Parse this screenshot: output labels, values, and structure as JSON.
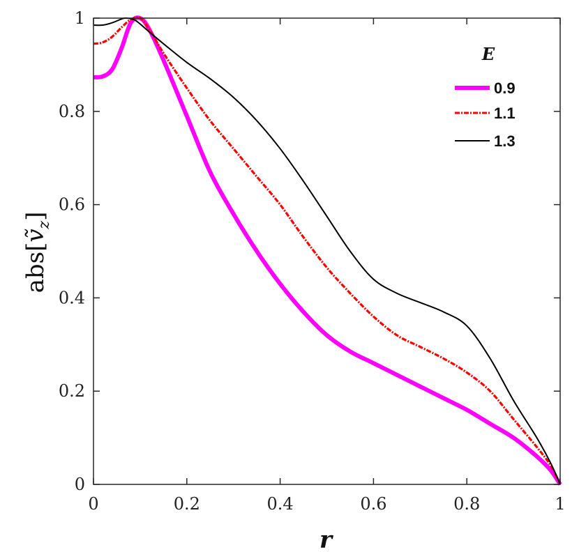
{
  "chart_data": {
    "type": "line",
    "xlabel": "r",
    "ylabel": "abs[ṽ_z]",
    "ylabel_main": "abs[",
    "ylabel_var": "ṽ",
    "ylabel_sub": "z",
    "ylabel_close": "]",
    "xlim": [
      0,
      1
    ],
    "ylim": [
      0,
      1
    ],
    "x_ticks": [
      0,
      0.2,
      0.4,
      0.6,
      0.8,
      1
    ],
    "y_ticks": [
      0,
      0.2,
      0.4,
      0.6,
      0.8,
      1
    ],
    "x_tick_labels": [
      "0",
      "0.2",
      "0.4",
      "0.6",
      "0.8",
      "1"
    ],
    "y_tick_labels": [
      "0",
      "0.2",
      "0.4",
      "0.6",
      "0.8",
      "1"
    ],
    "grid": false,
    "legend": {
      "title": "E",
      "placement": "top-right"
    },
    "series": [
      {
        "name": "0.9",
        "color": "#ff00ff",
        "style": "solid-thick",
        "points": [
          [
            0,
            0.873
          ],
          [
            0.02,
            0.875
          ],
          [
            0.04,
            0.89
          ],
          [
            0.06,
            0.935
          ],
          [
            0.08,
            0.99
          ],
          [
            0.1,
            1.0
          ],
          [
            0.12,
            0.975
          ],
          [
            0.15,
            0.91
          ],
          [
            0.2,
            0.79
          ],
          [
            0.25,
            0.67
          ],
          [
            0.3,
            0.58
          ],
          [
            0.35,
            0.5
          ],
          [
            0.4,
            0.43
          ],
          [
            0.45,
            0.37
          ],
          [
            0.5,
            0.32
          ],
          [
            0.55,
            0.285
          ],
          [
            0.6,
            0.26
          ],
          [
            0.65,
            0.235
          ],
          [
            0.7,
            0.21
          ],
          [
            0.75,
            0.185
          ],
          [
            0.8,
            0.16
          ],
          [
            0.85,
            0.13
          ],
          [
            0.9,
            0.1
          ],
          [
            0.95,
            0.06
          ],
          [
            0.98,
            0.03
          ],
          [
            1.0,
            0.0
          ]
        ]
      },
      {
        "name": "1.1",
        "color": "#ff0000",
        "style": "dash-dot",
        "points": [
          [
            0,
            0.945
          ],
          [
            0.02,
            0.948
          ],
          [
            0.04,
            0.96
          ],
          [
            0.06,
            0.98
          ],
          [
            0.08,
            0.997
          ],
          [
            0.1,
            1.0
          ],
          [
            0.12,
            0.975
          ],
          [
            0.15,
            0.925
          ],
          [
            0.2,
            0.85
          ],
          [
            0.25,
            0.78
          ],
          [
            0.3,
            0.72
          ],
          [
            0.35,
            0.66
          ],
          [
            0.4,
            0.6
          ],
          [
            0.45,
            0.53
          ],
          [
            0.5,
            0.465
          ],
          [
            0.55,
            0.41
          ],
          [
            0.6,
            0.36
          ],
          [
            0.65,
            0.32
          ],
          [
            0.7,
            0.295
          ],
          [
            0.75,
            0.27
          ],
          [
            0.8,
            0.24
          ],
          [
            0.85,
            0.2
          ],
          [
            0.9,
            0.14
          ],
          [
            0.95,
            0.08
          ],
          [
            0.98,
            0.04
          ],
          [
            1.0,
            0.0
          ]
        ]
      },
      {
        "name": "1.3",
        "color": "#000000",
        "style": "solid-thin",
        "points": [
          [
            0,
            0.985
          ],
          [
            0.02,
            0.985
          ],
          [
            0.04,
            0.99
          ],
          [
            0.06,
            0.998
          ],
          [
            0.07,
            1.0
          ],
          [
            0.09,
            0.995
          ],
          [
            0.12,
            0.97
          ],
          [
            0.15,
            0.945
          ],
          [
            0.2,
            0.905
          ],
          [
            0.25,
            0.87
          ],
          [
            0.3,
            0.83
          ],
          [
            0.35,
            0.78
          ],
          [
            0.4,
            0.72
          ],
          [
            0.45,
            0.65
          ],
          [
            0.5,
            0.575
          ],
          [
            0.55,
            0.5
          ],
          [
            0.6,
            0.44
          ],
          [
            0.65,
            0.41
          ],
          [
            0.7,
            0.39
          ],
          [
            0.75,
            0.37
          ],
          [
            0.8,
            0.34
          ],
          [
            0.85,
            0.27
          ],
          [
            0.9,
            0.18
          ],
          [
            0.95,
            0.1
          ],
          [
            0.98,
            0.045
          ],
          [
            1.0,
            0.0
          ]
        ]
      }
    ]
  }
}
